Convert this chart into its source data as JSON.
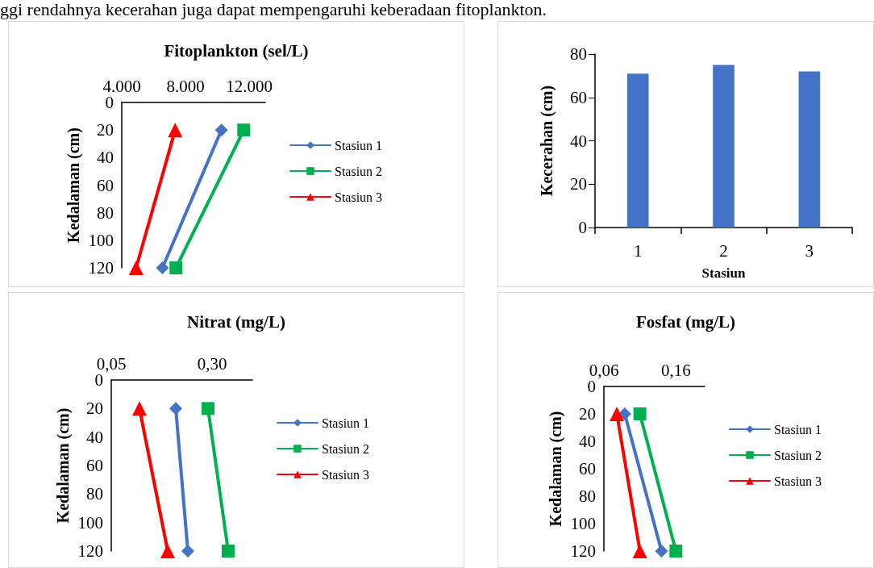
{
  "chart_data": [
    {
      "type": "line",
      "title": "Fitoplankton (sel/L)",
      "ylabel": "Kedalaman (cm)",
      "annotations": [
        "ggi rendahnya kecerahan juga dapat mempengaruhi keberadaan fitoplankton."
      ],
      "xlim": [
        4000,
        13000
      ],
      "xticks": [
        {
          "value": 4000,
          "label": "4.000"
        },
        {
          "value": 8000,
          "label": "8.000"
        },
        {
          "value": 12000,
          "label": "12.000"
        }
      ],
      "ylim": [
        120,
        0
      ],
      "yticks": [
        0,
        20,
        40,
        60,
        80,
        100,
        120
      ],
      "grid": false,
      "legend": "right",
      "series": [
        {
          "name": "Stasiun 1",
          "color": "#4472c4",
          "marker": "diamond",
          "x": [
            10250,
            6550
          ],
          "values": [
            20,
            120
          ]
        },
        {
          "name": "Stasiun 2",
          "color": "#00b050",
          "marker": "square",
          "x": [
            11650,
            7400
          ],
          "values": [
            20,
            120
          ]
        },
        {
          "name": "Stasiun 3",
          "color": "#ff0000",
          "marker": "triangle",
          "x": [
            7350,
            4900
          ],
          "values": [
            20,
            120
          ]
        }
      ]
    },
    {
      "type": "bar",
      "xlabel": "Stasiun",
      "ylabel": "Kecerahan (cm)",
      "categories": [
        "1",
        "2",
        "3"
      ],
      "values": [
        71,
        75,
        72
      ],
      "color": "#4472c4",
      "ylim": [
        0,
        80
      ],
      "yticks": [
        0,
        20,
        40,
        60,
        80
      ],
      "grid": false,
      "legend": false
    },
    {
      "type": "line",
      "title": "Nitrat (mg/L)",
      "ylabel": "Kedalaman (cm)",
      "xlim": [
        0.05,
        0.4
      ],
      "xticks": [
        {
          "value": 0.05,
          "label": "0,05"
        },
        {
          "value": 0.3,
          "label": "0,30"
        }
      ],
      "ylim": [
        120,
        0
      ],
      "yticks": [
        0,
        20,
        40,
        60,
        80,
        100,
        120
      ],
      "grid": false,
      "legend": "right",
      "series": [
        {
          "name": "Stasiun 1",
          "color": "#4472c4",
          "marker": "diamond",
          "x": [
            0.21,
            0.24
          ],
          "values": [
            20,
            120
          ]
        },
        {
          "name": "Stasiun 2",
          "color": "#00b050",
          "marker": "square",
          "x": [
            0.29,
            0.34
          ],
          "values": [
            20,
            120
          ]
        },
        {
          "name": "Stasiun 3",
          "color": "#ff0000",
          "marker": "triangle",
          "x": [
            0.12,
            0.19
          ],
          "values": [
            20,
            120
          ]
        }
      ]
    },
    {
      "type": "line",
      "title": "Fosfat (mg/L)",
      "ylabel": "Kedalaman (cm)",
      "xlim": [
        0.06,
        0.2
      ],
      "xticks": [
        {
          "value": 0.06,
          "label": "0,06"
        },
        {
          "value": 0.16,
          "label": "0,16"
        }
      ],
      "ylim": [
        120,
        0
      ],
      "yticks": [
        0,
        20,
        40,
        60,
        80,
        100,
        120
      ],
      "grid": false,
      "legend": "right",
      "series": [
        {
          "name": "Stasiun 1",
          "color": "#4472c4",
          "marker": "diamond",
          "x": [
            0.089,
            0.14
          ],
          "values": [
            20,
            120
          ]
        },
        {
          "name": "Stasiun 2",
          "color": "#00b050",
          "marker": "square",
          "x": [
            0.11,
            0.16
          ],
          "values": [
            20,
            120
          ]
        },
        {
          "name": "Stasiun 3",
          "color": "#ff0000",
          "marker": "triangle",
          "x": [
            0.078,
            0.11
          ],
          "values": [
            20,
            120
          ]
        }
      ]
    }
  ]
}
